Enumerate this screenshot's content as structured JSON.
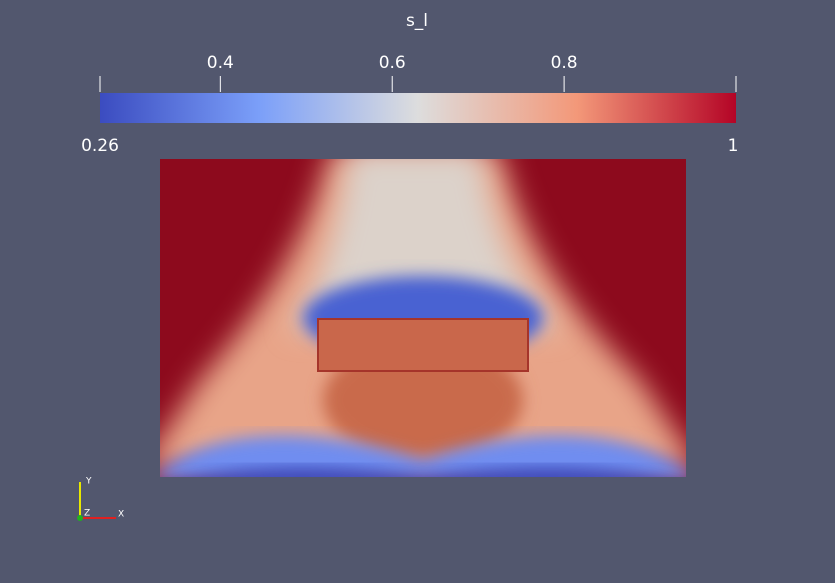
{
  "colorbar": {
    "title": "s_l",
    "min": 0.26,
    "max": 1,
    "ticks": [
      0.4,
      0.6,
      0.8
    ]
  },
  "axes_triad": {
    "x": "X",
    "y": "Y",
    "z": "Z"
  }
}
